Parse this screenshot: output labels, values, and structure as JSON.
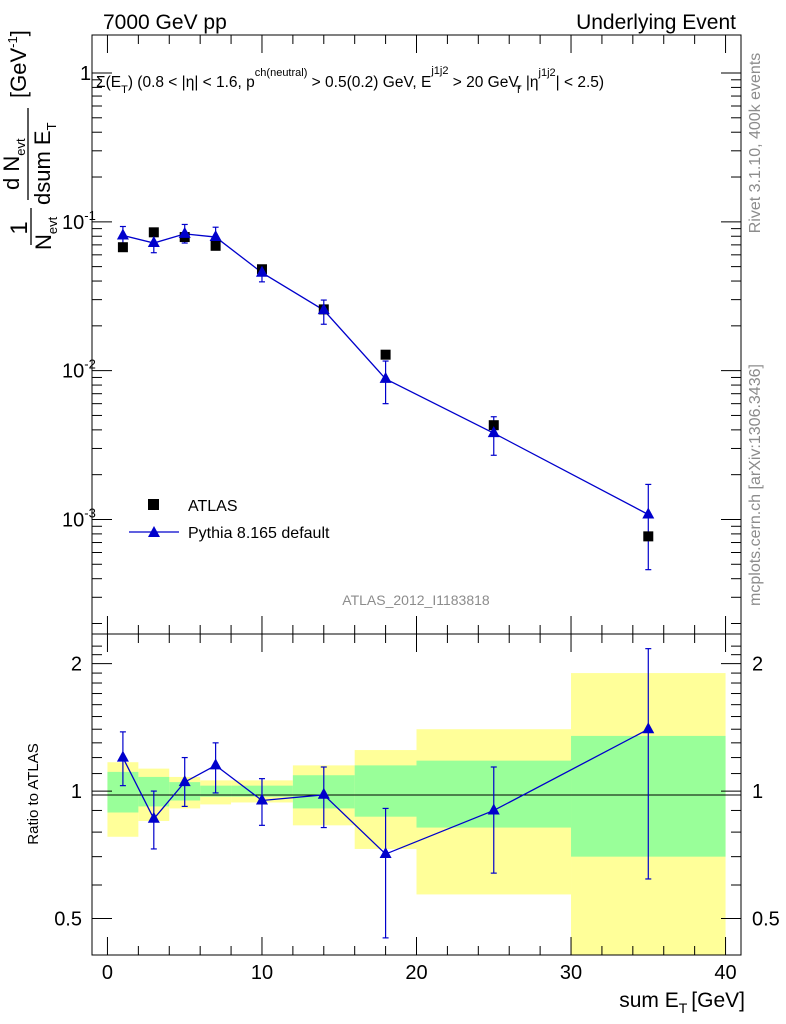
{
  "header": {
    "left": "7000 GeV pp",
    "right": "Underlying Event"
  },
  "side_labels": {
    "rivet": "Rivet 3.1.10,  400k events",
    "mcplots": "mcplots.cern.ch [arXiv:1306.3436]"
  },
  "chart_data": [
    {
      "type": "scatter",
      "panel": "main",
      "yscale": "log",
      "title": "Σ(E_T) (0.8 < |η| < 1.6, p^ch(neutral) > 0.5(0.2) GeV, E_T^j1j2 > 20 GeV, |η^j1j2| < 2.5)",
      "title_parts": {
        "sigma": "Σ(E",
        "sub_t": "T",
        "after_et": ") (0.8 < |η| < 1.6, p",
        "sup_ch": "ch(neutral)",
        "after_p": " > 0.5(0.2) GeV, E",
        "sup_j": "j1j2",
        "after_e2": " > 20 GeV, |η",
        "sup_j2": "j1j2",
        "end": "| < 2.5)"
      },
      "ylabel_parts": {
        "one": "1",
        "n": "N",
        "n_sub": "evt",
        "dn": "d N",
        "dn_sub": "evt",
        "dsum": "dsum E",
        "dsum_sub": "T",
        "unit": "[GeV",
        "unit_sup": "-1",
        "unit_end": "]"
      },
      "ylim": [
        0.00017,
        1.8
      ],
      "xlim": [
        -1,
        41
      ],
      "yticks": [
        {
          "label": "1",
          "value": 1
        },
        {
          "label": "10",
          "exp": "-1",
          "value": 0.1
        },
        {
          "label": "10",
          "exp": "-2",
          "value": 0.01
        },
        {
          "label": "10",
          "exp": "-3",
          "value": 0.001
        }
      ],
      "watermark": "ATLAS_2012_I1183818",
      "legend": [
        {
          "name": "ATLAS",
          "marker": "square",
          "color": "#000000"
        },
        {
          "name": "Pythia 8.165 default",
          "marker": "triangle",
          "color": "#0000cc"
        }
      ],
      "series": [
        {
          "name": "ATLAS",
          "x": [
            1,
            3,
            5,
            7,
            10,
            14,
            18,
            25,
            35
          ],
          "y": [
            0.0675,
            0.085,
            0.079,
            0.069,
            0.048,
            0.0258,
            0.0128,
            0.0043,
            0.00077
          ]
        },
        {
          "name": "Pythia 8.165 default",
          "x": [
            1,
            3,
            5,
            7,
            10,
            14,
            18,
            25,
            35
          ],
          "y": [
            0.081,
            0.072,
            0.083,
            0.079,
            0.0455,
            0.0255,
            0.0088,
            0.0038,
            0.00108
          ],
          "ylow": [
            0.069,
            0.062,
            0.072,
            0.068,
            0.0395,
            0.0205,
            0.006,
            0.0027,
            0.00046
          ],
          "yhigh": [
            0.093,
            0.083,
            0.096,
            0.092,
            0.051,
            0.0298,
            0.0116,
            0.0049,
            0.00172
          ]
        }
      ]
    },
    {
      "type": "scatter",
      "panel": "ratio",
      "ylabel": "Ratio to ATLAS",
      "xlabel": "sum E",
      "xlabel_sub": "T",
      "xlabel_unit": "[GeV]",
      "ylim": [
        0.41,
        2.35
      ],
      "xlim": [
        -1,
        41
      ],
      "xticks": [
        0,
        10,
        20,
        30,
        40
      ],
      "yticks": [
        {
          "label": "0.5",
          "value": 0.5
        },
        {
          "label": "1",
          "value": 1
        },
        {
          "label": "2",
          "value": 2
        }
      ],
      "bands": {
        "edges": [
          0,
          2,
          4,
          6,
          8,
          12,
          16,
          20,
          30,
          40
        ],
        "yellow": [
          [
            0.78,
            1.17
          ],
          [
            0.85,
            1.13
          ],
          [
            0.91,
            1.08
          ],
          [
            0.93,
            1.06
          ],
          [
            0.94,
            1.06
          ],
          [
            0.83,
            1.15
          ],
          [
            0.73,
            1.25
          ],
          [
            0.57,
            1.4
          ],
          [
            0.41,
            1.9
          ]
        ],
        "green": [
          [
            0.89,
            1.11
          ],
          [
            0.92,
            1.08
          ],
          [
            0.95,
            1.05
          ],
          [
            0.97,
            1.03
          ],
          [
            0.97,
            1.03
          ],
          [
            0.91,
            1.09
          ],
          [
            0.87,
            1.15
          ],
          [
            0.82,
            1.18
          ],
          [
            0.7,
            1.35
          ]
        ]
      },
      "series": [
        {
          "name": "Pythia 8.165 default",
          "x": [
            1,
            3,
            5,
            7,
            10,
            14,
            18,
            25,
            35
          ],
          "y": [
            1.2,
            0.86,
            1.05,
            1.15,
            0.95,
            0.98,
            0.71,
            0.9,
            1.4
          ],
          "ylow": [
            1.03,
            0.73,
            0.92,
            0.99,
            0.83,
            0.82,
            0.45,
            0.64,
            0.62
          ],
          "yhigh": [
            1.38,
            1.0,
            1.2,
            1.3,
            1.07,
            1.14,
            0.91,
            1.14,
            2.17
          ]
        }
      ]
    }
  ]
}
